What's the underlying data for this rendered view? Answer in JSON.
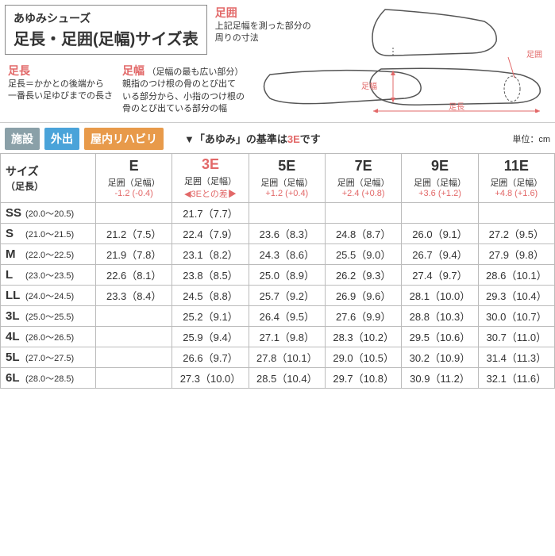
{
  "header": {
    "line1": "あゆみシューズ",
    "line2": "足長・足囲(足幅)サイズ表"
  },
  "topRight": {
    "ashikawaLabel": "足囲",
    "ashikawaDesc": "上記足幅を測った部分の\n周りの寸法",
    "diagramLabels": {
      "width": "足囲",
      "length": "足長"
    }
  },
  "mid": {
    "col1": {
      "label": "足長",
      "desc": "足長＝かかとの後端から\n一番長い足ゆびまでの長さ"
    },
    "col2": {
      "label": "足幅",
      "labelParen": "（足幅の最も広い部分）",
      "desc": "親指のつけ根の骨のとび出て\nいる部分から、小指のつけ根の\n骨のとび出ている部分の幅"
    },
    "diagramLabel": "足幅"
  },
  "badges": [
    {
      "text": "施設",
      "bg": "#8aa0a8"
    },
    {
      "text": "外出",
      "bg": "#4aa3d9"
    },
    {
      "text": "屋内リハビリ",
      "bg": "#e89a4a"
    }
  ],
  "note3e": {
    "prefix": "▼「あゆみ」の基準は",
    "highlight": "3E",
    "suffix": "です"
  },
  "unit": "単位：cm",
  "sizeHeader": {
    "line1": "サイズ",
    "line2": "（足長）"
  },
  "columns": [
    {
      "title": "E",
      "sub": "足囲（足幅）",
      "diff": "-1.2 (-0.4)",
      "is3e": false
    },
    {
      "title": "3E",
      "sub": "足囲（足幅）",
      "diff": "◀3Eとの差▶",
      "is3e": true
    },
    {
      "title": "5E",
      "sub": "足囲（足幅）",
      "diff": "+1.2 (+0.4)",
      "is3e": false
    },
    {
      "title": "7E",
      "sub": "足囲（足幅）",
      "diff": "+2.4 (+0.8)",
      "is3e": false
    },
    {
      "title": "9E",
      "sub": "足囲（足幅）",
      "diff": "+3.6 (+1.2)",
      "is3e": false
    },
    {
      "title": "11E",
      "sub": "足囲（足幅）",
      "diff": "+4.8 (+1.6)",
      "is3e": false
    }
  ],
  "rows": [
    {
      "size": "SS",
      "range": "(20.0～20.5)",
      "cells": [
        "",
        "21.7（7.7）",
        "",
        "",
        "",
        ""
      ]
    },
    {
      "size": "S",
      "range": "(21.0～21.5)",
      "cells": [
        "21.2（7.5）",
        "22.4（7.9）",
        "23.6（8.3）",
        "24.8（8.7）",
        "26.0（9.1）",
        "27.2（9.5）"
      ]
    },
    {
      "size": "M",
      "range": "(22.0～22.5)",
      "cells": [
        "21.9（7.8）",
        "23.1（8.2）",
        "24.3（8.6）",
        "25.5（9.0）",
        "26.7（9.4）",
        "27.9（9.8）"
      ]
    },
    {
      "size": "L",
      "range": "(23.0～23.5)",
      "cells": [
        "22.6（8.1）",
        "23.8（8.5）",
        "25.0（8.9）",
        "26.2（9.3）",
        "27.4（9.7）",
        "28.6（10.1）"
      ]
    },
    {
      "size": "LL",
      "range": "(24.0～24.5)",
      "cells": [
        "23.3（8.4）",
        "24.5（8.8）",
        "25.7（9.2）",
        "26.9（9.6）",
        "28.1（10.0）",
        "29.3（10.4）"
      ]
    },
    {
      "size": "3L",
      "range": "(25.0～25.5)",
      "cells": [
        "",
        "25.2（9.1）",
        "26.4（9.5）",
        "27.6（9.9）",
        "28.8（10.3）",
        "30.0（10.7）"
      ]
    },
    {
      "size": "4L",
      "range": "(26.0～26.5)",
      "cells": [
        "",
        "25.9（9.4）",
        "27.1（9.8）",
        "28.3（10.2）",
        "29.5（10.6）",
        "30.7（11.0）"
      ]
    },
    {
      "size": "5L",
      "range": "(27.0～27.5)",
      "cells": [
        "",
        "26.6（9.7）",
        "27.8（10.1）",
        "29.0（10.5）",
        "30.2（10.9）",
        "31.4（11.3）"
      ]
    },
    {
      "size": "6L",
      "range": "(28.0～28.5)",
      "cells": [
        "",
        "27.3（10.0）",
        "28.5（10.4）",
        "29.7（10.8）",
        "30.9（11.2）",
        "32.1（11.6）"
      ]
    }
  ],
  "colors": {
    "red": "#e26868",
    "border": "#bbbbbb",
    "diagramLine": "#555555"
  }
}
